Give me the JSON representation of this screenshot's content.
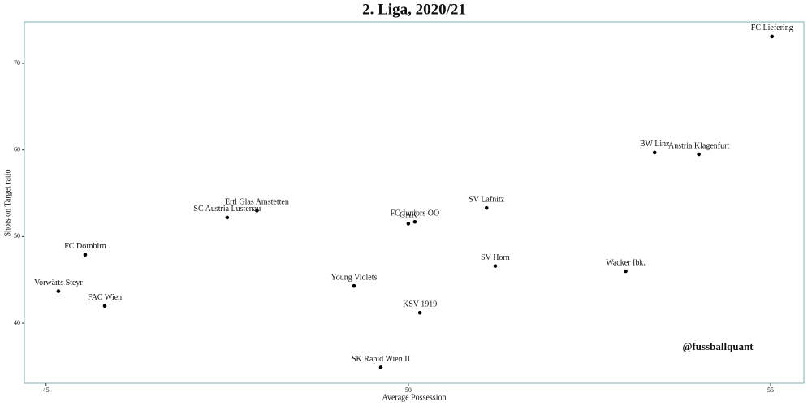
{
  "chart_data": {
    "type": "scatter",
    "title": "2. Liga, 2020/21",
    "x_label": "Average Possession",
    "y_label": "Shots on Target ratio",
    "annotation": "@fussballquant",
    "color": "#000000",
    "points": [
      {
        "name": "FC Liefering",
        "x": 55.02,
        "y": 73.1
      },
      {
        "name": "BW Linz",
        "x": 53.4,
        "y": 59.7
      },
      {
        "name": "Austria Klagenfurt",
        "x": 54.01,
        "y": 59.5
      },
      {
        "name": "SV Lafnitz",
        "x": 51.08,
        "y": 53.3
      },
      {
        "name": "Ertl Glas Amstetten",
        "x": 47.91,
        "y": 53.0
      },
      {
        "name": "SC Austria Lustenau",
        "x": 47.5,
        "y": 52.2
      },
      {
        "name": "FC Juniors OÖ",
        "x": 50.09,
        "y": 51.7
      },
      {
        "name": "GAK",
        "x": 50.0,
        "y": 51.5
      },
      {
        "name": "FC Dornbirn",
        "x": 45.54,
        "y": 47.9
      },
      {
        "name": "SV Horn",
        "x": 51.2,
        "y": 46.6
      },
      {
        "name": "Wacker Ibk.",
        "x": 53.0,
        "y": 46.0
      },
      {
        "name": "Young Violets",
        "x": 49.25,
        "y": 44.3
      },
      {
        "name": "Vorwärts Steyr",
        "x": 45.17,
        "y": 43.7
      },
      {
        "name": "FAC Wien",
        "x": 45.81,
        "y": 42.0
      },
      {
        "name": "KSV 1919",
        "x": 50.16,
        "y": 41.2
      },
      {
        "name": "SK Rapid Wien II",
        "x": 49.62,
        "y": 34.9
      }
    ],
    "xlim": [
      44.7,
      55.46
    ],
    "ylim": [
      33.07,
      74.78
    ],
    "xticks": [
      45,
      50,
      55
    ],
    "yticks": [
      40,
      50,
      60,
      70
    ],
    "grid": false
  }
}
